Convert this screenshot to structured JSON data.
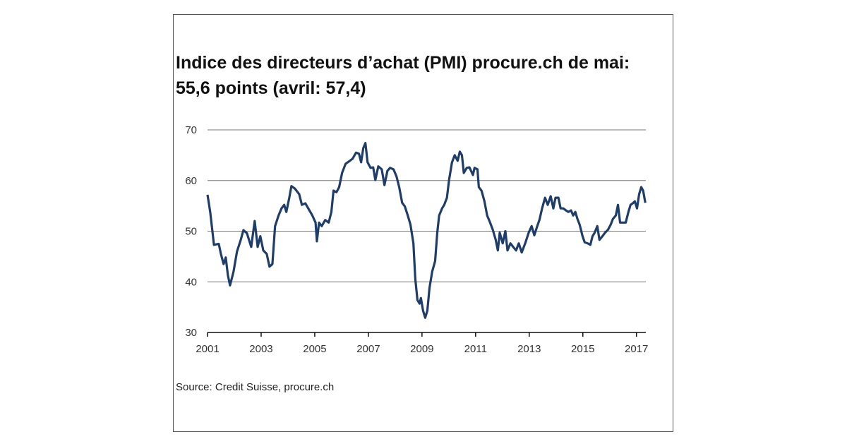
{
  "chart_data": {
    "type": "line",
    "title": [
      "Indice des directeurs d’achat (PMI) procure.ch de mai:",
      "55,6 points (avril: 57,4)"
    ],
    "source": "Source: Credit Suisse, procure.ch",
    "x": [
      2001.0,
      2001.1,
      2001.24,
      2001.42,
      2001.5,
      2001.6,
      2001.68,
      2001.76,
      2001.84,
      2001.97,
      2002.1,
      2002.24,
      2002.34,
      2002.47,
      2002.63,
      2002.76,
      2002.87,
      2002.97,
      2003.08,
      2003.21,
      2003.31,
      2003.42,
      2003.52,
      2003.65,
      2003.76,
      2003.86,
      2003.94,
      2004.05,
      2004.13,
      2004.26,
      2004.42,
      2004.52,
      2004.65,
      2004.78,
      2004.91,
      2005.03,
      2005.08,
      2005.16,
      2005.26,
      2005.39,
      2005.52,
      2005.62,
      2005.7,
      2005.81,
      2005.91,
      2006.02,
      2006.15,
      2006.31,
      2006.41,
      2006.54,
      2006.65,
      2006.73,
      2006.81,
      2006.89,
      2006.97,
      2007.08,
      2007.18,
      2007.26,
      2007.37,
      2007.5,
      2007.6,
      2007.71,
      2007.81,
      2007.94,
      2008.05,
      2008.15,
      2008.26,
      2008.36,
      2008.47,
      2008.57,
      2008.68,
      2008.75,
      2008.83,
      2008.91,
      2008.96,
      2009.04,
      2009.12,
      2009.2,
      2009.28,
      2009.38,
      2009.49,
      2009.57,
      2009.64,
      2009.75,
      2009.83,
      2009.93,
      2010.01,
      2010.12,
      2010.22,
      2010.33,
      2010.41,
      2010.49,
      2010.56,
      2010.67,
      2010.77,
      2010.9,
      2010.96,
      2011.07,
      2011.12,
      2011.22,
      2011.33,
      2011.43,
      2011.54,
      2011.64,
      2011.75,
      2011.83,
      2011.9,
      2012.01,
      2012.11,
      2012.19,
      2012.3,
      2012.4,
      2012.51,
      2012.61,
      2012.72,
      2012.85,
      2012.98,
      2013.09,
      2013.19,
      2013.3,
      2013.38,
      2013.48,
      2013.59,
      2013.69,
      2013.8,
      2013.9,
      2013.98,
      2014.09,
      2014.17,
      2014.27,
      2014.37,
      2014.46,
      2014.56,
      2014.64,
      2014.72,
      2014.8,
      2014.88,
      2014.99,
      2015.07,
      2015.18,
      2015.28,
      2015.36,
      2015.44,
      2015.54,
      2015.62,
      2015.73,
      2015.83,
      2015.94,
      2016.04,
      2016.12,
      2016.23,
      2016.31,
      2016.39,
      2016.49,
      2016.6,
      2016.7,
      2016.78,
      2016.86,
      2016.94,
      2017.02,
      2017.1,
      2017.18,
      2017.25,
      2017.33
    ],
    "values": [
      57.2,
      53.8,
      47.3,
      47.5,
      45.5,
      43.5,
      44.8,
      41.3,
      39.3,
      42,
      46,
      48.3,
      50.2,
      49.6,
      46.9,
      52,
      46.9,
      49,
      46.2,
      45.5,
      43,
      43.5,
      51,
      53.1,
      54.5,
      55.2,
      53.8,
      56.6,
      58.9,
      58.4,
      57.3,
      55.2,
      55.5,
      54.3,
      53.1,
      51.7,
      48,
      51.7,
      51,
      52.2,
      51.7,
      53.8,
      58,
      57.7,
      58.7,
      61.5,
      63.3,
      63.9,
      64.3,
      65.5,
      65.3,
      63.6,
      66.4,
      67.4,
      63.6,
      62.5,
      62.6,
      60.1,
      62.8,
      62.2,
      59.1,
      61.9,
      62.5,
      62.2,
      60.8,
      58.7,
      55.6,
      54.9,
      53.1,
      51.3,
      47.6,
      40.6,
      36.4,
      35.7,
      36.8,
      34.3,
      32.9,
      34.3,
      38.8,
      42,
      44.1,
      49.7,
      53.1,
      54.5,
      55.2,
      56.6,
      60.1,
      63.6,
      65,
      63.9,
      65.7,
      65,
      61.5,
      62.5,
      62.6,
      61.1,
      62.5,
      62.2,
      58.7,
      58,
      55.9,
      53.1,
      51.7,
      50.3,
      48.3,
      46.2,
      49.7,
      47.6,
      50,
      46.2,
      47.6,
      46.9,
      46.2,
      47.6,
      45.8,
      47.6,
      49.7,
      51,
      49.2,
      51,
      52.2,
      54.5,
      56.6,
      55.2,
      56.9,
      54.5,
      56.6,
      56.6,
      54.5,
      54.5,
      54.1,
      53.8,
      54.1,
      53.1,
      53.8,
      52.4,
      51.3,
      49,
      47.8,
      47.6,
      47.3,
      49,
      49.7,
      51,
      48.3,
      49,
      49.7,
      50.3,
      51.3,
      52.4,
      53.1,
      55.2,
      51.7,
      51.7,
      51.7,
      53.8,
      55.2,
      55.5,
      55.9,
      54.5,
      57.3,
      58.7,
      58,
      55.6
    ],
    "color": "#1f3d6b",
    "xlim": [
      2001,
      2017.35
    ],
    "xticks": [
      2001,
      2003,
      2005,
      2007,
      2009,
      2011,
      2013,
      2015,
      2017
    ],
    "ylim": [
      30,
      70
    ],
    "yticks": [
      30,
      40,
      50,
      60,
      70
    ],
    "grid": true
  }
}
